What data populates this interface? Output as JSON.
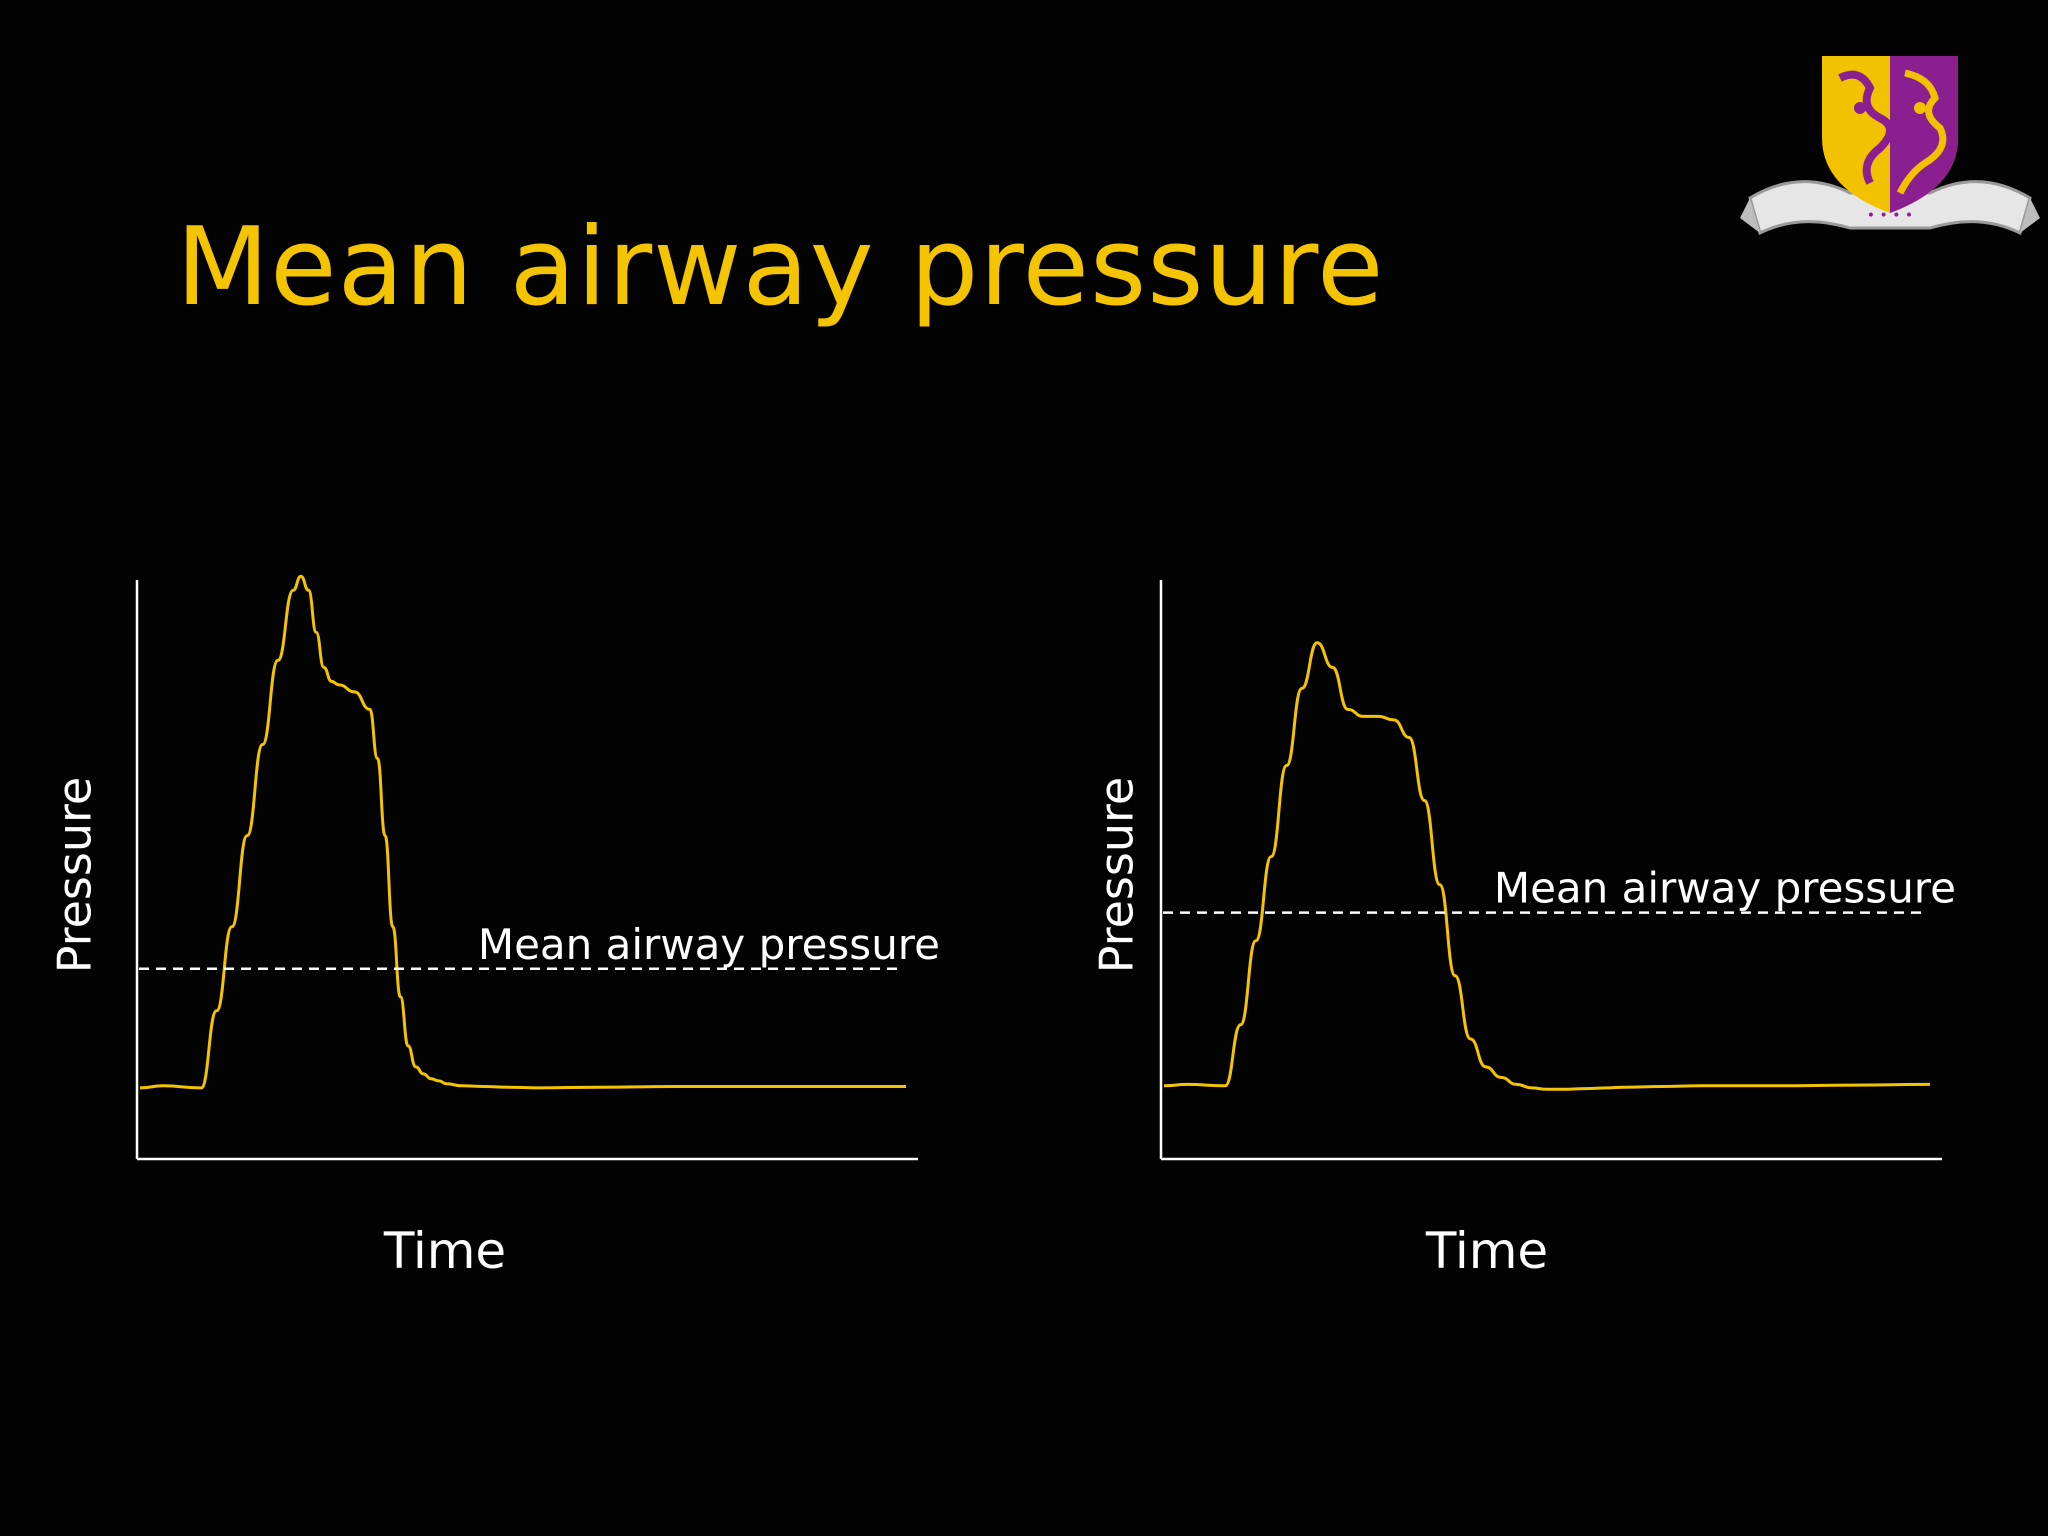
{
  "slide": {
    "title": "Mean airway pressure",
    "colors": {
      "title": "#f5c400",
      "curve": "#f5c400",
      "axes": "#ffffff",
      "background": "#030303"
    },
    "logo": {
      "icon": "university-crest-icon",
      "banner_text": ""
    }
  },
  "chart_data": [
    {
      "type": "line",
      "title": "",
      "xlabel": "Time",
      "ylabel": "Pressure",
      "grid": false,
      "xlim": [
        0,
        100
      ],
      "ylim": [
        0,
        100
      ],
      "series": [
        {
          "x": [
            0,
            3,
            8,
            10,
            12,
            14,
            16,
            18,
            20,
            21,
            22,
            23,
            24,
            25,
            26,
            28,
            30,
            31,
            32,
            33,
            34,
            35,
            36,
            37,
            38,
            39,
            40,
            42,
            45,
            48,
            52,
            60,
            70,
            80,
            90,
            100
          ],
          "y": [
            9,
            9.3,
            9,
            20,
            32,
            45,
            58,
            70,
            80,
            82,
            80,
            74,
            69,
            67,
            66.5,
            65.5,
            63,
            56,
            45,
            32,
            22,
            15,
            12,
            11,
            10.3,
            10,
            9.6,
            9.3,
            9.2,
            9.1,
            9.0,
            9.1,
            9.2,
            9.2,
            9.2,
            9.2
          ]
        }
      ],
      "annotations": [
        {
          "text": "Mean airway pressure",
          "y": 26,
          "style": "dashed"
        }
      ]
    },
    {
      "type": "line",
      "title": "",
      "xlabel": "Time",
      "ylabel": "Pressure",
      "grid": false,
      "xlim": [
        0,
        100
      ],
      "ylim": [
        0,
        100
      ],
      "series": [
        {
          "x": [
            0,
            3,
            8,
            10,
            12,
            14,
            16,
            18,
            20,
            22,
            24,
            26,
            28,
            30,
            32,
            34,
            36,
            38,
            40,
            42,
            44,
            46,
            48,
            50,
            52,
            55,
            58,
            60,
            65,
            70,
            80,
            90,
            100
          ],
          "y": [
            9.3,
            9.5,
            9.3,
            18,
            30,
            42,
            55,
            66,
            72.5,
            69,
            63,
            62,
            62,
            61.5,
            59,
            50,
            38,
            25,
            16,
            12,
            10.5,
            9.5,
            9,
            8.8,
            8.8,
            8.9,
            9,
            9.1,
            9.2,
            9.3,
            9.3,
            9.4,
            9.5
          ]
        }
      ],
      "annotations": [
        {
          "text": "Mean airway pressure",
          "y": 34,
          "style": "dashed"
        }
      ]
    }
  ]
}
